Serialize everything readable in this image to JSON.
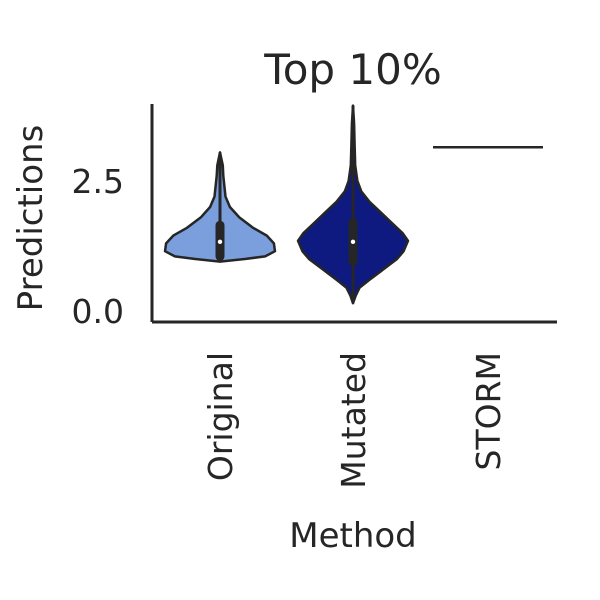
{
  "chart_data": {
    "type": "violin",
    "title": "Top 10%",
    "xlabel": "Method",
    "ylabel": "Predictions",
    "categories": [
      "Original",
      "Mutated",
      "STORM"
    ],
    "y_ticks": [
      "0.0",
      "2.5"
    ],
    "y_tick_values": [
      0.0,
      2.5
    ],
    "ylim": [
      -0.2,
      4.0
    ],
    "grid": false,
    "violins": [
      {
        "name": "Original",
        "color": "#7b9fdc",
        "min": 0.95,
        "q1": 1.05,
        "median": 1.33,
        "q3": 1.65,
        "max": 3.05,
        "profile": [
          [
            0.95,
            0.0
          ],
          [
            1.0,
            0.45
          ],
          [
            1.05,
            0.82
          ],
          [
            1.15,
            1.0
          ],
          [
            1.3,
            0.98
          ],
          [
            1.45,
            0.85
          ],
          [
            1.6,
            0.6
          ],
          [
            1.8,
            0.35
          ],
          [
            2.0,
            0.18
          ],
          [
            2.2,
            0.1
          ],
          [
            2.4,
            0.08
          ],
          [
            2.6,
            0.06
          ],
          [
            2.8,
            0.05
          ],
          [
            3.05,
            0.0
          ]
        ]
      },
      {
        "name": "Mutated",
        "color": "#0e1a80",
        "min": 0.15,
        "q1": 0.95,
        "median": 1.33,
        "q3": 1.7,
        "max": 3.95,
        "profile": [
          [
            0.15,
            0.0
          ],
          [
            0.3,
            0.05
          ],
          [
            0.45,
            0.12
          ],
          [
            0.6,
            0.3
          ],
          [
            0.8,
            0.55
          ],
          [
            1.0,
            0.8
          ],
          [
            1.15,
            0.92
          ],
          [
            1.35,
            1.0
          ],
          [
            1.5,
            0.9
          ],
          [
            1.7,
            0.7
          ],
          [
            1.9,
            0.5
          ],
          [
            2.1,
            0.3
          ],
          [
            2.3,
            0.15
          ],
          [
            2.5,
            0.08
          ],
          [
            2.8,
            0.04
          ],
          [
            3.2,
            0.03
          ],
          [
            3.6,
            0.02
          ],
          [
            3.95,
            0.0
          ]
        ]
      },
      {
        "name": "STORM",
        "color": "#262626",
        "constant_value": 3.15
      }
    ]
  }
}
